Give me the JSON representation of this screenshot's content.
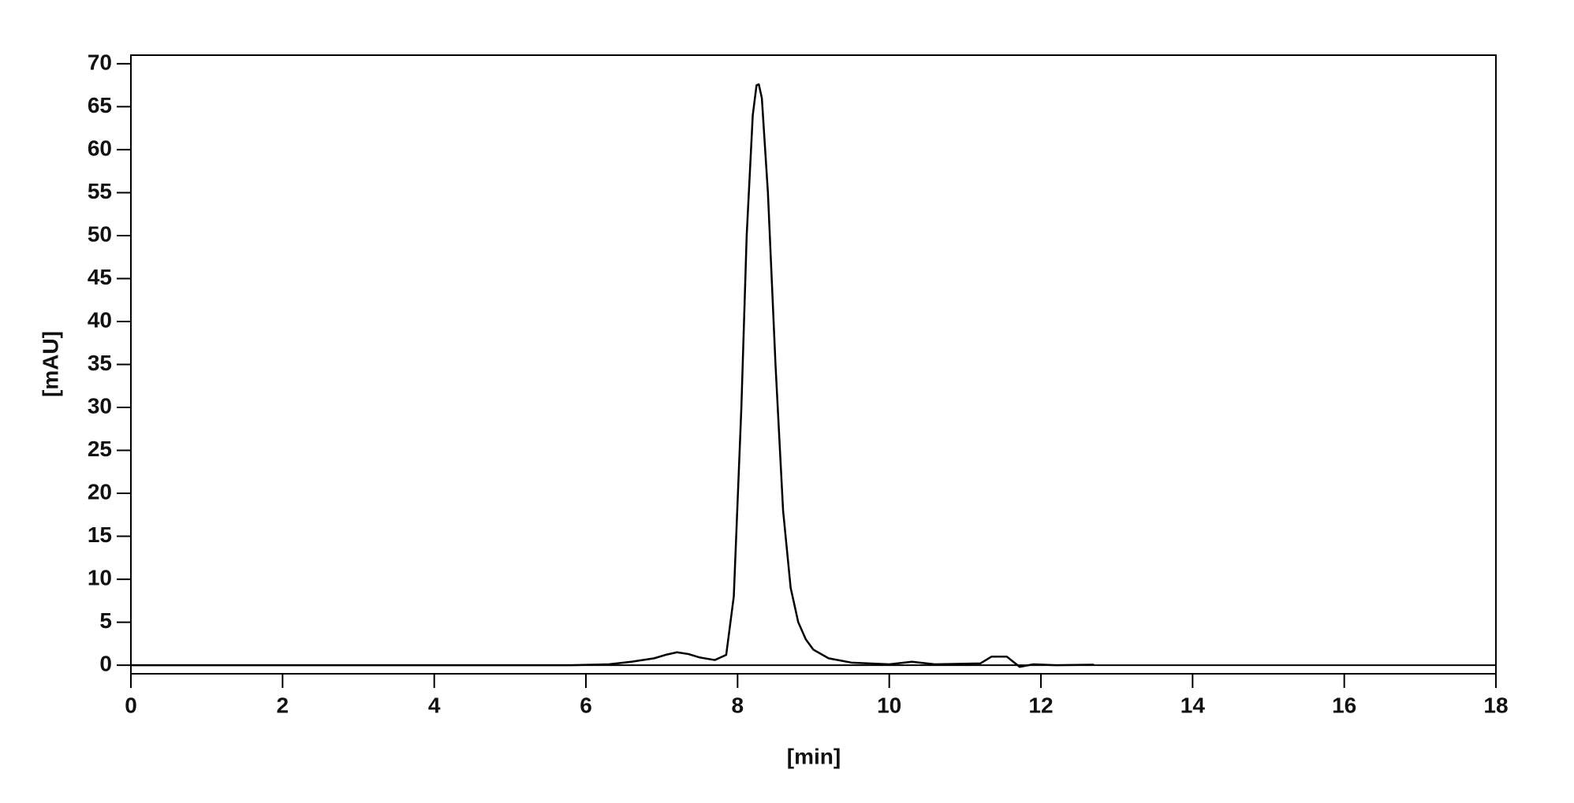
{
  "chart_data": {
    "type": "line",
    "xlabel": "[min]",
    "ylabel": "[mAU]",
    "x": [
      0,
      5.8,
      6.3,
      6.6,
      6.9,
      7.05,
      7.2,
      7.35,
      7.5,
      7.7,
      7.85,
      7.95,
      8.05,
      8.12,
      8.2,
      8.25,
      8.28,
      8.32,
      8.4,
      8.5,
      8.6,
      8.7,
      8.8,
      8.9,
      9.0,
      9.2,
      9.5,
      10.0,
      10.3,
      10.6,
      11.2,
      11.35,
      11.55,
      11.62,
      11.72,
      11.9,
      12.2,
      12.7
    ],
    "series": [
      {
        "color": "#000000",
        "values": [
          0,
          0,
          0.1,
          0.4,
          0.8,
          1.2,
          1.5,
          1.3,
          0.9,
          0.6,
          1.2,
          8,
          30,
          50,
          64,
          67.5,
          67.6,
          66,
          55,
          35,
          18,
          9,
          5,
          3,
          1.8,
          0.8,
          0.3,
          0.1,
          0.4,
          0.1,
          0.2,
          1,
          1,
          0.5,
          -0.2,
          0.1,
          0,
          0.05
        ]
      }
    ],
    "hlines": [
      0
    ],
    "xlim": [
      0,
      18
    ],
    "xticks": [
      0,
      2,
      4,
      6,
      8,
      10,
      12,
      14,
      16,
      18
    ],
    "ylim": [
      -1,
      71
    ],
    "yticks": [
      0,
      5,
      10,
      15,
      20,
      25,
      30,
      35,
      40,
      45,
      50,
      55,
      60,
      65,
      70
    ]
  }
}
